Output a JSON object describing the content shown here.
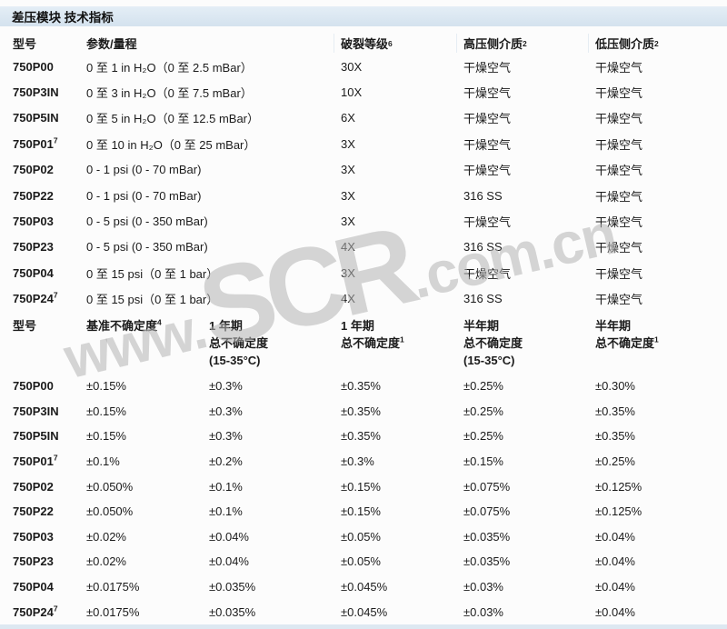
{
  "page": {
    "title": "差压模块 技术指标"
  },
  "watermark": {
    "prefix": "www.",
    "mid": "SCR",
    "suffix": ".com.cn"
  },
  "table1": {
    "headers": {
      "model": "型号",
      "range": "参数/量程",
      "burst": {
        "l1": "破裂等级",
        "s1": "6"
      },
      "high": {
        "l1": "高压侧介质",
        "s1": "2"
      },
      "low": {
        "l1": "低压侧介质",
        "s1": "2"
      }
    },
    "rows": [
      {
        "model": "750P00",
        "sup": "",
        "range": "0 至 1 in H₂O（0 至 2.5 mBar）",
        "burst": "30X",
        "high": "干燥空气",
        "low": "干燥空气"
      },
      {
        "model": "750P3IN",
        "sup": "",
        "range": "0 至 3 in H₂O（0 至 7.5 mBar）",
        "burst": "10X",
        "high": "干燥空气",
        "low": "干燥空气"
      },
      {
        "model": "750P5IN",
        "sup": "",
        "range": "0 至 5 in H₂O（0 至 12.5 mBar）",
        "burst": "6X",
        "high": "干燥空气",
        "low": "干燥空气"
      },
      {
        "model": "750P01",
        "sup": "7",
        "range": "0 至 10 in H₂O（0 至 25 mBar）",
        "burst": "3X",
        "high": "干燥空气",
        "low": "干燥空气"
      },
      {
        "model": "750P02",
        "sup": "",
        "range": "0 - 1 psi (0 - 70 mBar)",
        "burst": "3X",
        "high": "干燥空气",
        "low": "干燥空气"
      },
      {
        "model": "750P22",
        "sup": "",
        "range": "0 - 1 psi (0 - 70 mBar)",
        "burst": "3X",
        "high": "316 SS",
        "low": "干燥空气"
      },
      {
        "model": "750P03",
        "sup": "",
        "range": "0 - 5 psi (0 - 350 mBar)",
        "burst": "3X",
        "high": "干燥空气",
        "low": "干燥空气"
      },
      {
        "model": "750P23",
        "sup": "",
        "range": "0 - 5 psi (0 - 350 mBar)",
        "burst": "4X",
        "high": "316 SS",
        "low": "干燥空气"
      },
      {
        "model": "750P04",
        "sup": "",
        "range": "0 至 15 psi（0 至 1 bar）",
        "burst": "3X",
        "high": "干燥空气",
        "low": "干燥空气"
      },
      {
        "model": "750P24",
        "sup": "7",
        "range": "0 至 15 psi（0 至 1 bar）",
        "burst": "4X",
        "high": "316 SS",
        "low": "干燥空气"
      }
    ]
  },
  "table2": {
    "headers": {
      "model": {
        "l1": "型号"
      },
      "c1": {
        "l1": "基准不确定度",
        "s1": "4"
      },
      "c2": {
        "l1": "1 年期",
        "l2": "总不确定度",
        "l3": "(15-35°C)"
      },
      "c3": {
        "l1": "1 年期",
        "l2": "总不确定度",
        "s2": "1"
      },
      "c4": {
        "l1": "半年期",
        "l2": "总不确定度",
        "l3": "(15-35°C)"
      },
      "c5": {
        "l1": "半年期",
        "l2": "总不确定度",
        "s2": "1"
      }
    },
    "rows": [
      {
        "model": "750P00",
        "sup": "",
        "c1": "±0.15%",
        "c2": "±0.3%",
        "c3": "±0.35%",
        "c4": "±0.25%",
        "c5": "±0.30%"
      },
      {
        "model": "750P3IN",
        "sup": "",
        "c1": "±0.15%",
        "c2": "±0.3%",
        "c3": "±0.35%",
        "c4": "±0.25%",
        "c5": "±0.35%"
      },
      {
        "model": "750P5IN",
        "sup": "",
        "c1": "±0.15%",
        "c2": "±0.3%",
        "c3": "±0.35%",
        "c4": "±0.25%",
        "c5": "±0.35%"
      },
      {
        "model": "750P01",
        "sup": "7",
        "c1": "±0.1%",
        "c2": "±0.2%",
        "c3": "±0.3%",
        "c4": "±0.15%",
        "c5": "±0.25%"
      },
      {
        "model": "750P02",
        "sup": "",
        "c1": "±0.050%",
        "c2": "±0.1%",
        "c3": "±0.15%",
        "c4": "±0.075%",
        "c5": "±0.125%"
      },
      {
        "model": "750P22",
        "sup": "",
        "c1": "±0.050%",
        "c2": "±0.1%",
        "c3": "±0.15%",
        "c4": "±0.075%",
        "c5": "±0.125%"
      },
      {
        "model": "750P03",
        "sup": "",
        "c1": "±0.02%",
        "c2": "±0.04%",
        "c3": "±0.05%",
        "c4": "±0.035%",
        "c5": "±0.04%"
      },
      {
        "model": "750P23",
        "sup": "",
        "c1": "±0.02%",
        "c2": "±0.04%",
        "c3": "±0.05%",
        "c4": "±0.035%",
        "c5": "±0.04%"
      },
      {
        "model": "750P04",
        "sup": "",
        "c1": "±0.0175%",
        "c2": "±0.035%",
        "c3": "±0.045%",
        "c4": "±0.03%",
        "c5": "±0.04%"
      },
      {
        "model": "750P24",
        "sup": "7",
        "c1": "±0.0175%",
        "c2": "±0.035%",
        "c3": "±0.045%",
        "c4": "±0.03%",
        "c5": "±0.04%"
      }
    ]
  }
}
